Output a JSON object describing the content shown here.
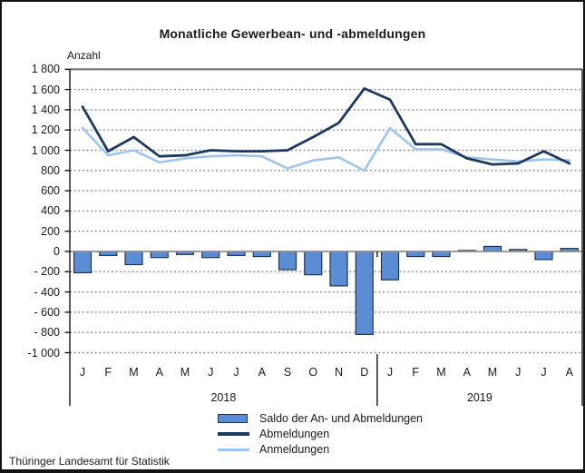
{
  "title": "Monatliche Gewerbean- und -abmeldungen",
  "axis_unit_label": "Anzahl",
  "source": "Thüringer Landesamt für Statistik",
  "colors": {
    "bar_fill": "#5b8dd4",
    "bar_border": "#25344f",
    "abmeldungen_line": "#1f3a60",
    "anmeldungen_line": "#a0c4ea",
    "gridline": "#8f8f8f"
  },
  "legend": [
    {
      "label": "Saldo der An- und Abmeldungen",
      "type": "bar",
      "color": "#5b8dd4"
    },
    {
      "label": "Abmeldungen",
      "type": "line",
      "color": "#1f3a60"
    },
    {
      "label": "Anmeldungen",
      "type": "line",
      "color": "#a0c4ea"
    }
  ],
  "chart_data": {
    "type": "combo-bar-line",
    "ylabel": "Anzahl",
    "ylim": [
      -1000,
      1800
    ],
    "ytick_step": 200,
    "grid": true,
    "legend_position": "bottom",
    "y_ticks": [
      "1 800",
      "1 600",
      "1 400",
      "1 200",
      "1 000",
      "800",
      "600",
      "400",
      "200",
      "0",
      "- 200",
      "- 400",
      "- 600",
      "- 800",
      "-1 000"
    ],
    "months": [
      "J",
      "F",
      "M",
      "A",
      "M",
      "J",
      "J",
      "A",
      "S",
      "O",
      "N",
      "D",
      "J",
      "F",
      "M",
      "A",
      "M",
      "J",
      "J",
      "A"
    ],
    "years": [
      {
        "label": "2018",
        "start": 0,
        "end": 11
      },
      {
        "label": "2019",
        "start": 12,
        "end": 19
      }
    ],
    "series": [
      {
        "name": "Saldo der An- und Abmeldungen",
        "type": "bar",
        "color": "#5b8dd4",
        "values": [
          -210,
          -40,
          -130,
          -60,
          -30,
          -60,
          -40,
          -50,
          -180,
          -230,
          -340,
          -820,
          -280,
          -50,
          -50,
          10,
          50,
          20,
          -80,
          30
        ]
      },
      {
        "name": "Abmeldungen",
        "type": "line",
        "color": "#1f3a60",
        "values": [
          1430,
          990,
          1130,
          940,
          950,
          1000,
          990,
          990,
          1000,
          1130,
          1270,
          1610,
          1500,
          1060,
          1060,
          920,
          860,
          870,
          990,
          870
        ]
      },
      {
        "name": "Anmeldungen",
        "type": "line",
        "color": "#a0c4ea",
        "values": [
          1220,
          950,
          1000,
          880,
          920,
          940,
          950,
          940,
          820,
          900,
          930,
          800,
          1220,
          1010,
          1010,
          930,
          910,
          890,
          910,
          900
        ]
      }
    ]
  }
}
